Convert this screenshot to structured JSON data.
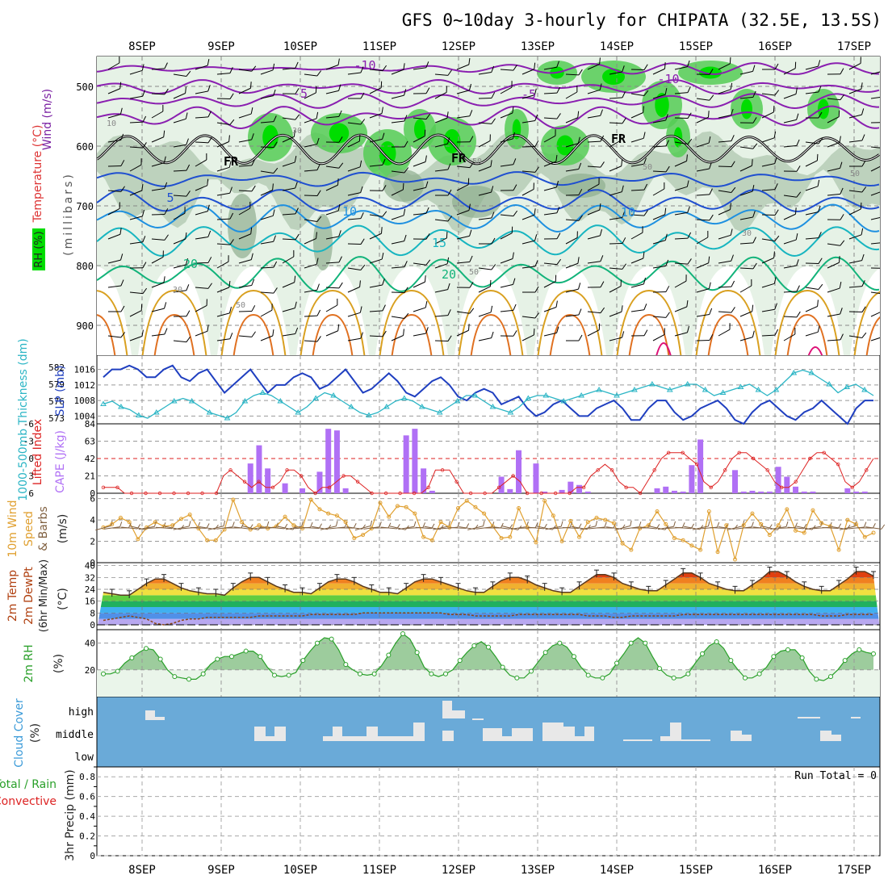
{
  "title": "GFS 0~10day 3-hourly for CHIPATA (32.5E, 13.5S)",
  "date_labels": [
    "8SEP",
    "9SEP",
    "10SEP",
    "11SEP",
    "12SEP",
    "13SEP",
    "14SEP",
    "15SEP",
    "16SEP",
    "17SEP"
  ],
  "colors": {
    "rh_light": "#e6f2e6",
    "rh_mid": "#b5ccb5",
    "rh_dark": "#8fae8f",
    "rh_green": "#55cc55",
    "rh_bright": "#00dd00",
    "iso_neg": "#8a1fb0",
    "iso_fr": "#000000",
    "iso_5": "#1f4fd0",
    "iso_10": "#1e90e0",
    "iso_15": "#17b5c0",
    "iso_20": "#12b37a",
    "iso_25": "#d9a020",
    "iso_30": "#e07020",
    "iso_35": "#dd1177",
    "slp": "#1f3fc0",
    "thickness": "#2bb5c5",
    "cape": "#b070f5",
    "li": "#dd2222",
    "wind_speed": "#e0a030",
    "barbs": "#806040",
    "rh2m": "#2aa02a",
    "cloud_bg": "#6aaad8",
    "cloud_box": "#e8e8e8"
  },
  "panel1": {
    "y_label_wind": "Wind (m/s)",
    "y_label_temp": "Temperature (°C)",
    "y_label_rh": "RH (%)",
    "y_label_mb": "(millibars)",
    "y_ticks": [
      "500",
      "600",
      "700",
      "800",
      "900"
    ],
    "iso_labels": [
      "-10",
      "-10",
      "-5",
      "-5",
      "FR",
      "FR",
      "FR",
      "5",
      "10",
      "10",
      "15",
      "20",
      "20"
    ],
    "rh_labels": [
      "10",
      "30",
      "50",
      "50",
      "50",
      "30",
      "50",
      "30",
      "50"
    ]
  },
  "panel2": {
    "y_label_slp": "SLP (mb)",
    "y_label_thk": "1000-500mb Thickness (dm)",
    "left_ticks": [
      "582",
      "579",
      "576",
      "573"
    ],
    "right_ticks": [
      "1016",
      "1012",
      "1008",
      "1004"
    ]
  },
  "panel3": {
    "y_label_li": "Lifted Index",
    "y_label_cape": "CAPE (J/kg)",
    "left_ticks": [
      "-6",
      "-3",
      "0",
      "3",
      "6"
    ],
    "right_ticks": [
      "84",
      "63",
      "42",
      "21",
      "0"
    ]
  },
  "panel4": {
    "y_label_a": "10m Wind",
    "y_label_b": "Speed",
    "y_label_c": "& Barbs",
    "y_label_unit": "(m/s)",
    "ticks": [
      "6",
      "4",
      "2",
      "0"
    ]
  },
  "panel5": {
    "y_label_a": "2m Temp",
    "y_label_b": "2m DewPt",
    "y_label_c": "(6hr Min/Max)",
    "y_label_unit": "(°C)",
    "ticks": [
      "40",
      "32",
      "24",
      "16",
      "8",
      "0"
    ]
  },
  "panel6": {
    "y_label": "2m RH",
    "y_label_unit": "(%)",
    "ticks": [
      "40",
      "20"
    ]
  },
  "panel7": {
    "y_label": "Cloud Cover",
    "y_label_unit": "(%)",
    "levels": [
      "high",
      "middle",
      "low"
    ]
  },
  "panel8": {
    "y_label_a": "Total / Rain",
    "y_label_b": "Convective",
    "y_label_c": "3hr Precip (mm)",
    "ticks": [
      "0.8",
      "0.6",
      "0.4",
      "0.2",
      "0"
    ],
    "run_total": "Run Total = 0"
  },
  "chart_data": [
    {
      "type": "line",
      "title": "",
      "ylabel": "SLP (mb)",
      "series": [
        {
          "name": "SLP",
          "values": [
            1014,
            1016,
            1016,
            1017,
            1016,
            1014,
            1014,
            1016,
            1017,
            1014,
            1013,
            1015,
            1016,
            1013,
            1010,
            1012,
            1014,
            1016,
            1013,
            1010,
            1012,
            1012,
            1014,
            1015,
            1014,
            1011,
            1012,
            1014,
            1016,
            1013,
            1010,
            1011,
            1013,
            1015,
            1013,
            1010,
            1009,
            1011,
            1013,
            1014,
            1012,
            1009,
            1008,
            1010,
            1011,
            1010,
            1007,
            1008,
            1009,
            1006,
            1004,
            1005,
            1007,
            1008,
            1006,
            1004,
            1004,
            1006,
            1007,
            1008,
            1006,
            1003,
            1003,
            1006,
            1008,
            1008,
            1005,
            1003,
            1004,
            1006,
            1007,
            1008,
            1006,
            1003,
            1002,
            1005,
            1007,
            1008,
            1006,
            1004,
            1003,
            1005,
            1006,
            1008,
            1006,
            1004,
            1002,
            1006,
            1008,
            1008
          ]
        }
      ]
    },
    {
      "type": "line",
      "ylabel": "1000-500mb Thickness (dm)",
      "series": [
        {
          "name": "Thickness",
          "values": [
            575.5,
            576,
            575,
            574.5,
            573.5,
            573,
            574,
            575,
            576,
            576.5,
            576,
            575,
            574,
            573.5,
            573,
            574,
            576,
            577,
            577.5,
            577,
            576,
            575,
            574,
            575,
            576.5,
            577.5,
            577,
            576,
            575,
            574,
            573.5,
            574,
            575,
            576,
            576.5,
            576,
            575,
            574.5,
            574,
            575,
            576,
            577,
            577,
            576,
            575,
            574.5,
            574,
            575,
            576.5,
            577,
            577,
            576.5,
            576,
            576.5,
            577,
            577.5,
            578,
            577.5,
            577,
            577.5,
            578,
            578.5,
            579,
            578.5,
            578,
            578.5,
            579,
            579,
            578,
            577,
            577.5,
            578,
            578.5,
            579,
            578,
            577,
            578,
            579.5,
            581,
            581.5,
            581,
            580,
            579,
            577.5,
            578.5,
            579,
            578,
            577
          ]
        }
      ]
    },
    {
      "type": "bar",
      "ylabel": "CAPE (J/kg)",
      "ylim": [
        0,
        84
      ],
      "x_index": [
        17,
        18,
        19,
        21,
        23,
        25,
        26,
        27,
        28,
        35,
        36,
        37,
        38,
        46,
        47,
        48,
        50,
        51,
        53,
        54,
        55,
        56,
        64,
        65,
        66,
        67,
        68,
        69,
        73,
        74,
        75,
        76,
        77,
        78,
        79,
        80,
        81,
        82,
        86,
        87,
        88
      ],
      "values": [
        36,
        58,
        30,
        12,
        6,
        26,
        78,
        76,
        6,
        70,
        78,
        30,
        3,
        20,
        5,
        52,
        36,
        2,
        4,
        14,
        10,
        2,
        6,
        8,
        3,
        2,
        34,
        65,
        28,
        2,
        3,
        2,
        2,
        32,
        20,
        8,
        2,
        2,
        6,
        2,
        2
      ]
    },
    {
      "type": "line",
      "ylabel": "Lifted Index",
      "ylim": [
        -6,
        6
      ],
      "values": [
        5,
        5,
        5,
        6,
        6,
        6,
        6,
        6,
        6,
        6,
        6,
        6,
        6,
        6,
        6,
        6,
        6,
        3,
        2,
        3,
        4,
        5,
        4,
        5,
        5,
        4,
        2,
        2,
        3,
        5,
        6,
        5,
        5,
        4,
        3,
        3,
        4,
        5,
        6,
        6,
        6,
        6,
        6,
        6,
        6,
        6,
        5,
        2,
        2,
        2,
        4,
        6,
        6,
        6,
        6,
        6,
        5,
        4,
        3,
        4,
        6,
        6,
        6,
        6,
        6,
        6,
        6,
        5,
        5,
        3,
        2,
        1,
        2,
        4,
        5,
        5,
        6,
        4,
        2,
        0,
        -1,
        -1,
        -1,
        0,
        1,
        4,
        5,
        4,
        2,
        0,
        -1,
        -1,
        0,
        1,
        2,
        4,
        5,
        5,
        4,
        2,
        0,
        -1,
        -1,
        0,
        1,
        4,
        5,
        4,
        2,
        0
      ]
    },
    {
      "type": "line",
      "ylabel": "10m Wind Speed & Barbs (m/s)",
      "ylim": [
        0,
        6
      ],
      "values": [
        3.3,
        3.6,
        4.2,
        3.8,
        2.2,
        3.3,
        3.8,
        3.4,
        3.5,
        4.1,
        4.5,
        3.2,
        2.1,
        2.1,
        3.1,
        5.9,
        3.8,
        3.1,
        3.5,
        3.2,
        3.4,
        4.3,
        3.5,
        3.2,
        5.9,
        5.0,
        4.6,
        4.4,
        3.8,
        2.3,
        2.6,
        3.2,
        5.6,
        4.3,
        5.3,
        5.2,
        4.6,
        2.4,
        2.1,
        3.8,
        3.3,
        5.1,
        5.8,
        5.2,
        4.6,
        3.4,
        2.3,
        2.4,
        5.1,
        3.3,
        1.9,
        5.8,
        4.4,
        2.0,
        3.9,
        2.4,
        3.8,
        4.2,
        4.0,
        3.7,
        1.8,
        1.2,
        3.2,
        3.5,
        4.8,
        3.6,
        2.3,
        2.1,
        1.6,
        1.2,
        4.8,
        1.0,
        3.5,
        0.3,
        3.5,
        4.6,
        3.6,
        2.6,
        3.5,
        5.0,
        3.0,
        2.8,
        4.9,
        3.7,
        3.4,
        1.2,
        4.0,
        3.6,
        2.4,
        2.8
      ]
    },
    {
      "type": "area",
      "ylabel": "2m Temp (°C)",
      "ylim": [
        0,
        40
      ],
      "series": [
        {
          "name": "2m Temp",
          "values": [
            22,
            21,
            20,
            20,
            24,
            28,
            31,
            31,
            28,
            25,
            23,
            22,
            21,
            21,
            20,
            25,
            29,
            32,
            32,
            29,
            26,
            24,
            22,
            22,
            21,
            25,
            29,
            31,
            31,
            29,
            26,
            24,
            22,
            22,
            21,
            25,
            29,
            31,
            31,
            29,
            27,
            25,
            23,
            22,
            22,
            26,
            30,
            32,
            32,
            30,
            27,
            25,
            23,
            22,
            22,
            26,
            30,
            34,
            34,
            32,
            28,
            26,
            24,
            23,
            23,
            27,
            31,
            35,
            35,
            32,
            28,
            26,
            24,
            23,
            23,
            27,
            31,
            36,
            36,
            33,
            29,
            26,
            24,
            23,
            23,
            27,
            31,
            36,
            36,
            33
          ]
        },
        {
          "name": "2m DewPt",
          "values": [
            3,
            4,
            5,
            6,
            5,
            4,
            1,
            0,
            1,
            3,
            4,
            4,
            5,
            5,
            5,
            5,
            5,
            5,
            6,
            6,
            6,
            6,
            6,
            6,
            7,
            7,
            7,
            7,
            7,
            7,
            8,
            8,
            8,
            8,
            8,
            8,
            8,
            8,
            8,
            8,
            7,
            7,
            7,
            6,
            6,
            6,
            6,
            6,
            7,
            7,
            7,
            7,
            7,
            7,
            7,
            7,
            6,
            6,
            6,
            5,
            5,
            6,
            6,
            6,
            6,
            6,
            6,
            7,
            7,
            7,
            7,
            7,
            7,
            7,
            7,
            7,
            7,
            7,
            7,
            7,
            7,
            7,
            7,
            6,
            6,
            6,
            7,
            7,
            7,
            7
          ]
        }
      ]
    },
    {
      "type": "area",
      "ylabel": "2m RH (%)",
      "series": [
        {
          "name": "2m RH",
          "values": [
            17,
            17,
            19,
            25,
            29,
            33,
            36,
            35,
            28,
            20,
            15,
            14,
            13,
            13,
            17,
            24,
            28,
            30,
            30,
            32,
            34,
            34,
            30,
            22,
            16,
            15,
            16,
            18,
            27,
            34,
            40,
            44,
            43,
            35,
            24,
            20,
            17,
            16,
            17,
            23,
            31,
            40,
            47,
            43,
            33,
            22,
            17,
            15,
            17,
            20,
            27,
            33,
            38,
            41,
            37,
            30,
            22,
            16,
            14,
            14,
            19,
            26,
            33,
            38,
            40,
            37,
            30,
            22,
            16,
            14,
            14,
            17,
            25,
            32,
            40,
            44,
            40,
            30,
            21,
            16,
            14,
            14,
            17,
            25,
            32,
            38,
            41,
            36,
            27,
            20,
            14,
            14,
            17,
            22,
            30,
            34,
            35,
            35,
            29,
            19,
            13,
            12,
            15,
            20,
            27,
            32,
            35,
            33,
            32
          ]
        }
      ]
    },
    {
      "type": "bar",
      "ylabel": "3hr Precip (mm)",
      "ylim": [
        0,
        0.8
      ],
      "values": []
    }
  ]
}
